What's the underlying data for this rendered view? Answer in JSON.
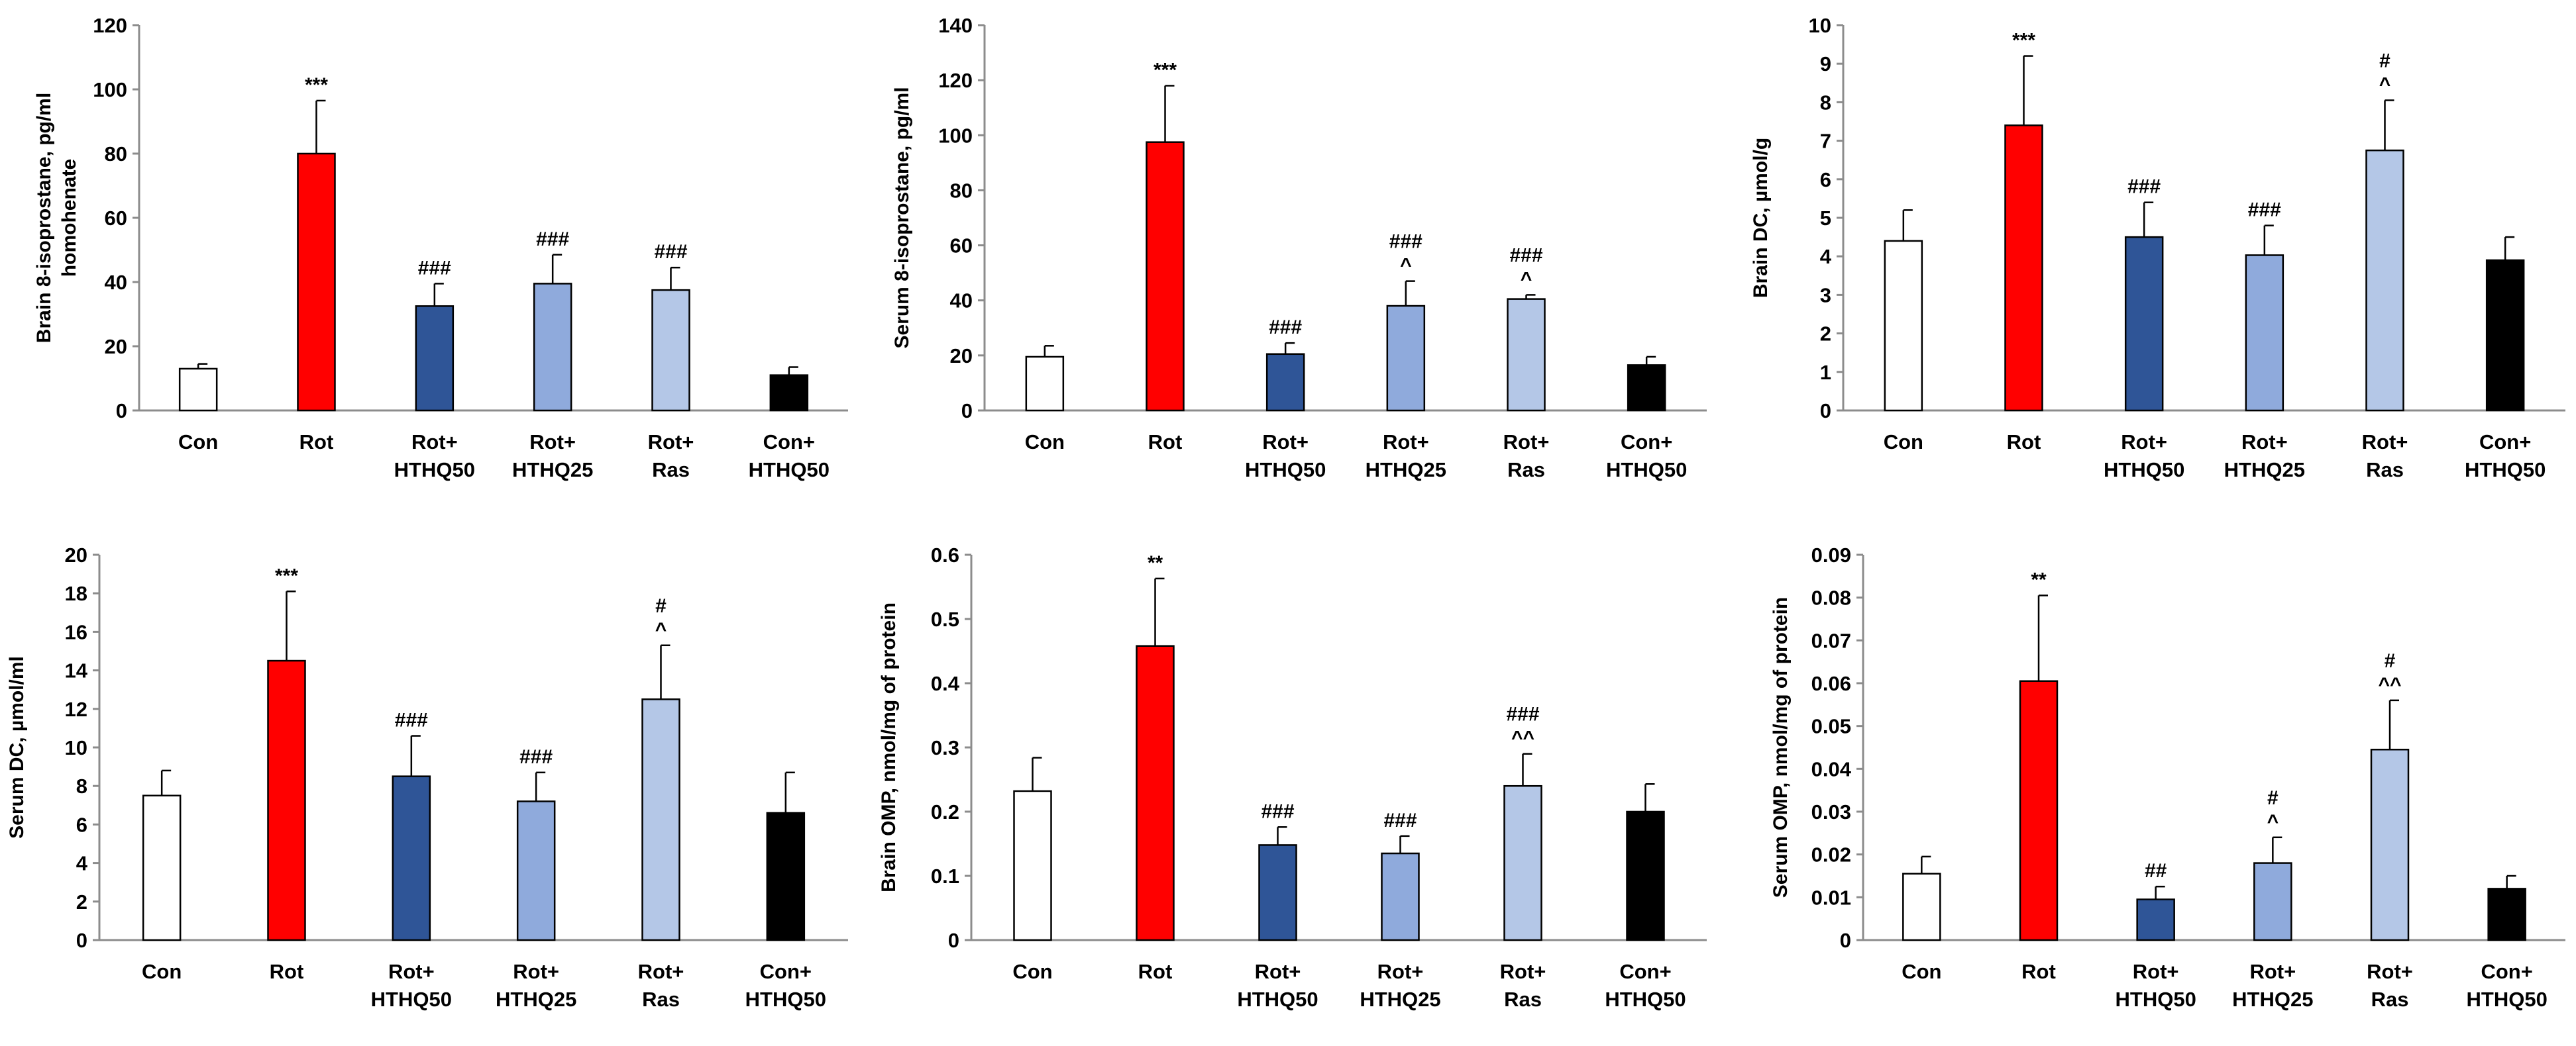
{
  "figure": {
    "colors": {
      "Con": "#ffffff",
      "Rot": "#ff0000",
      "Rot+HTHQ50": "#2f5597",
      "Rot+HTHQ25": "#8faadc",
      "Rot+Ras": "#b4c7e7",
      "Con+HTHQ50": "#000000"
    }
  },
  "chart_data": [
    {
      "type": "bar",
      "ylabel": "Brain 8-isoprostane, pg/ml homohenate",
      "ylabel_lines": [
        "Brain 8-isoprostane, pg/ml",
        "homohenate"
      ],
      "ylim": [
        0,
        120
      ],
      "yticks": [
        "0",
        "20",
        "40",
        "60",
        "80",
        "100",
        "120"
      ],
      "categories": [
        "Con",
        "Rot",
        "Rot+HTHQ50",
        "Rot+HTHQ25",
        "Rot+Ras",
        "Con+HTHQ50"
      ],
      "category_lines": [
        [
          "Con"
        ],
        [
          "Rot"
        ],
        [
          "Rot+",
          "HTHQ50"
        ],
        [
          "Rot+",
          "HTHQ25"
        ],
        [
          "Rot+",
          "Ras"
        ],
        [
          "Con+",
          "HTHQ50"
        ]
      ],
      "values": [
        13,
        80,
        32.5,
        39.5,
        37.5,
        11
      ],
      "errors": [
        1.5,
        16.5,
        7,
        9,
        7,
        2.5
      ],
      "annotations": [
        [],
        [
          "***"
        ],
        [
          "###"
        ],
        [
          "###"
        ],
        [
          "###"
        ],
        []
      ]
    },
    {
      "type": "bar",
      "ylabel": "Serum 8-isoprostane, pg/ml",
      "ylabel_lines": [
        "Serum 8-isoprostane, pg/ml"
      ],
      "ylim": [
        0,
        140
      ],
      "yticks": [
        "0",
        "20",
        "40",
        "60",
        "80",
        "100",
        "120",
        "140"
      ],
      "categories": [
        "Con",
        "Rot",
        "Rot+HTHQ50",
        "Rot+HTHQ25",
        "Rot+Ras",
        "Con+HTHQ50"
      ],
      "category_lines": [
        [
          "Con"
        ],
        [
          "Rot"
        ],
        [
          "Rot+",
          "HTHQ50"
        ],
        [
          "Rot+",
          "HTHQ25"
        ],
        [
          "Rot+",
          "Ras"
        ],
        [
          "Con+",
          "HTHQ50"
        ]
      ],
      "values": [
        19.5,
        97.5,
        20.5,
        38,
        40.5,
        16.5
      ],
      "errors": [
        4,
        20.5,
        4,
        9,
        1.5,
        3
      ],
      "annotations": [
        [],
        [
          "***"
        ],
        [
          "###"
        ],
        [
          "^",
          "###"
        ],
        [
          "^",
          "###"
        ],
        []
      ]
    },
    {
      "type": "bar",
      "ylabel": "Brain DC, µmol/g",
      "ylabel_lines": [
        "Brain DC, µmol/g"
      ],
      "ylim": [
        0,
        10
      ],
      "yticks": [
        "0",
        "1",
        "2",
        "3",
        "4",
        "5",
        "6",
        "7",
        "8",
        "9",
        "10"
      ],
      "categories": [
        "Con",
        "Rot",
        "Rot+HTHQ50",
        "Rot+HTHQ25",
        "Rot+Ras",
        "Con+HTHQ50"
      ],
      "category_lines": [
        [
          "Con"
        ],
        [
          "Rot"
        ],
        [
          "Rot+",
          "HTHQ50"
        ],
        [
          "Rot+",
          "HTHQ25"
        ],
        [
          "Rot+",
          "Ras"
        ],
        [
          "Con+",
          "HTHQ50"
        ]
      ],
      "values": [
        4.4,
        7.4,
        4.5,
        4.03,
        6.75,
        3.9
      ],
      "errors": [
        0.8,
        1.8,
        0.9,
        0.77,
        1.3,
        0.6
      ],
      "annotations": [
        [],
        [
          "***"
        ],
        [
          "###"
        ],
        [
          "###"
        ],
        [
          "^",
          "#"
        ],
        []
      ]
    },
    {
      "type": "bar",
      "ylabel": "Serum DC, µmol/ml",
      "ylabel_lines": [
        "Serum DC, µmol/ml"
      ],
      "ylim": [
        0,
        20
      ],
      "yticks": [
        "0",
        "2",
        "4",
        "6",
        "8",
        "10",
        "12",
        "14",
        "16",
        "18",
        "20"
      ],
      "categories": [
        "Con",
        "Rot",
        "Rot+HTHQ50",
        "Rot+HTHQ25",
        "Rot+Ras",
        "Con+HTHQ50"
      ],
      "category_lines": [
        [
          "Con"
        ],
        [
          "Rot"
        ],
        [
          "Rot+",
          "HTHQ50"
        ],
        [
          "Rot+",
          "HTHQ25"
        ],
        [
          "Rot+",
          "Ras"
        ],
        [
          "Con+",
          "HTHQ50"
        ]
      ],
      "values": [
        7.5,
        14.5,
        8.5,
        7.2,
        12.5,
        6.6
      ],
      "errors": [
        1.3,
        3.6,
        2.1,
        1.5,
        2.8,
        2.1
      ],
      "annotations": [
        [],
        [
          "***"
        ],
        [
          "###"
        ],
        [
          "###"
        ],
        [
          "^",
          "#"
        ],
        []
      ]
    },
    {
      "type": "bar",
      "ylabel": "Brain OMP, nmol/mg of protein",
      "ylabel_lines": [
        "Brain OMP, nmol/mg of protein"
      ],
      "ylim": [
        0,
        0.6
      ],
      "yticks": [
        "0",
        "0.1",
        "0.2",
        "0.3",
        "0.4",
        "0.5",
        "0.6"
      ],
      "categories": [
        "Con",
        "Rot",
        "Rot+HTHQ50",
        "Rot+HTHQ25",
        "Rot+Ras",
        "Con+HTHQ50"
      ],
      "category_lines": [
        [
          "Con"
        ],
        [
          "Rot"
        ],
        [
          "Rot+",
          "HTHQ50"
        ],
        [
          "Rot+",
          "HTHQ25"
        ],
        [
          "Rot+",
          "Ras"
        ],
        [
          "Con+",
          "HTHQ50"
        ]
      ],
      "values": [
        0.232,
        0.458,
        0.148,
        0.135,
        0.24,
        0.2
      ],
      "errors": [
        0.052,
        0.105,
        0.028,
        0.027,
        0.05,
        0.043
      ],
      "annotations": [
        [],
        [
          "**"
        ],
        [
          "###"
        ],
        [
          "###"
        ],
        [
          "^^",
          "###"
        ],
        []
      ]
    },
    {
      "type": "bar",
      "ylabel": "Serum OMP, nmol/mg of protein",
      "ylabel_lines": [
        "Serum OMP, nmol/mg of protein"
      ],
      "ylim": [
        0,
        0.09
      ],
      "yticks": [
        "0",
        "0.01",
        "0.02",
        "0.03",
        "0.04",
        "0.05",
        "0.06",
        "0.07",
        "0.08",
        "0.09"
      ],
      "categories": [
        "Con",
        "Rot",
        "Rot+HTHQ50",
        "Rot+HTHQ25",
        "Rot+Ras",
        "Con+HTHQ50"
      ],
      "category_lines": [
        [
          "Con"
        ],
        [
          "Rot"
        ],
        [
          "Rot+",
          "HTHQ50"
        ],
        [
          "Rot+",
          "HTHQ25"
        ],
        [
          "Rot+",
          "Ras"
        ],
        [
          "Con+",
          "HTHQ50"
        ]
      ],
      "values": [
        0.0155,
        0.0605,
        0.0095,
        0.018,
        0.0445,
        0.012
      ],
      "errors": [
        0.004,
        0.02,
        0.003,
        0.006,
        0.0115,
        0.003
      ],
      "annotations": [
        [],
        [
          "**"
        ],
        [
          "##"
        ],
        [
          "^",
          "#"
        ],
        [
          "^^",
          "#"
        ],
        []
      ]
    }
  ]
}
